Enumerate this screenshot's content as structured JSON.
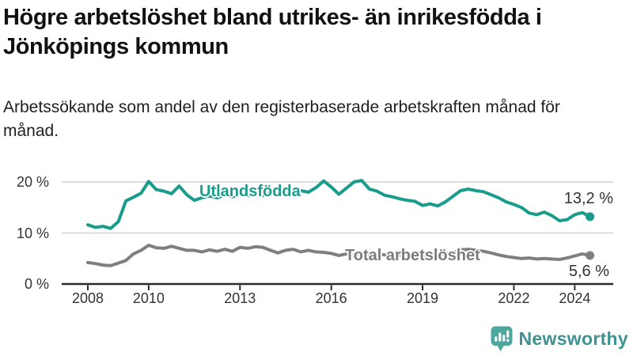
{
  "title": "Högre arbetslöshet bland utrikes- än inrikesfödda i Jönköpings kommun",
  "subtitle": "Arbetssökande som andel av den registerbaserade arbetskraften månad för månad.",
  "branding": {
    "logo_text": "Newsworthy",
    "logo_icon": "bar-chart-speech-bubble-icon"
  },
  "colors": {
    "foreign_born": "#1a9c8c",
    "total": "#7f7f7f",
    "gridline": "#d2d2d2",
    "axis": "#2b2b2b",
    "tick_text": "#333333",
    "logo_bubble": "#4da79c",
    "logo_text": "#3f9192"
  },
  "chart_data": {
    "type": "line",
    "title": "Högre arbetslöshet bland utrikes- än inrikesfödda i Jönköpings kommun",
    "subtitle": "Arbetssökande som andel av den registerbaserade arbetskraften månad för månad.",
    "unit": "%",
    "xlabel": "",
    "ylabel": "",
    "xlim": [
      2008,
      2024.5
    ],
    "ylim": [
      0,
      22
    ],
    "xticks": [
      2008,
      2010,
      2013,
      2016,
      2019,
      2022,
      2024
    ],
    "yticks": [
      0,
      10,
      20
    ],
    "ytick_suffix": " %",
    "grid": "horizontal",
    "legend": "inline-labels",
    "x": [
      2008,
      2008.25,
      2008.5,
      2008.75,
      2009,
      2009.25,
      2009.5,
      2009.75,
      2010,
      2010.25,
      2010.5,
      2010.75,
      2011,
      2011.25,
      2011.5,
      2011.75,
      2012,
      2012.25,
      2012.5,
      2012.75,
      2013,
      2013.25,
      2013.5,
      2013.75,
      2014,
      2014.25,
      2014.5,
      2014.75,
      2015,
      2015.25,
      2015.5,
      2015.75,
      2016,
      2016.25,
      2016.5,
      2016.75,
      2017,
      2017.25,
      2017.5,
      2017.75,
      2018,
      2018.25,
      2018.5,
      2018.75,
      2019,
      2019.25,
      2019.5,
      2019.75,
      2020,
      2020.25,
      2020.5,
      2020.75,
      2021,
      2021.25,
      2021.5,
      2021.75,
      2022,
      2022.25,
      2022.5,
      2022.75,
      2023,
      2023.25,
      2023.5,
      2023.75,
      2024,
      2024.25,
      2024.5
    ],
    "series": [
      {
        "name": "Utlandsfödda",
        "color_key": "foreign_born",
        "end_label": "13,2 %",
        "end_value": 13.2,
        "values": [
          11.6,
          11.1,
          11.3,
          10.9,
          12.2,
          16.3,
          17.0,
          17.8,
          20.1,
          18.5,
          18.2,
          17.7,
          19.2,
          17.5,
          16.4,
          16.9,
          17.3,
          16.9,
          17.5,
          17.1,
          17.6,
          17.3,
          17.8,
          17.4,
          17.9,
          17.6,
          18.1,
          17.7,
          18.3,
          18.0,
          18.9,
          20.2,
          19.0,
          17.6,
          18.8,
          20.0,
          20.3,
          18.6,
          18.2,
          17.4,
          17.1,
          16.7,
          16.4,
          16.2,
          15.4,
          15.7,
          15.3,
          16.1,
          17.2,
          18.3,
          18.6,
          18.3,
          18.1,
          17.5,
          16.9,
          16.1,
          15.6,
          15.0,
          13.9,
          13.6,
          14.1,
          13.4,
          12.4,
          12.6,
          13.6,
          14.0,
          13.2
        ]
      },
      {
        "name": "Total arbetslöshet",
        "color_key": "total",
        "end_label": "5,6 %",
        "end_value": 5.6,
        "values": [
          4.2,
          4.0,
          3.7,
          3.6,
          4.1,
          4.6,
          5.9,
          6.6,
          7.6,
          7.1,
          7.0,
          7.4,
          7.0,
          6.6,
          6.6,
          6.3,
          6.7,
          6.4,
          6.8,
          6.4,
          7.2,
          7.0,
          7.3,
          7.2,
          6.6,
          6.1,
          6.6,
          6.8,
          6.3,
          6.6,
          6.3,
          6.2,
          6.0,
          5.6,
          5.9,
          5.7,
          5.9,
          5.7,
          5.9,
          5.7,
          5.8,
          5.6,
          5.8,
          5.6,
          5.7,
          5.6,
          5.8,
          5.9,
          6.1,
          6.7,
          6.8,
          6.6,
          6.4,
          6.1,
          5.7,
          5.4,
          5.2,
          5.0,
          5.1,
          4.9,
          5.0,
          4.9,
          4.8,
          5.1,
          5.5,
          5.9,
          5.6
        ]
      }
    ]
  }
}
